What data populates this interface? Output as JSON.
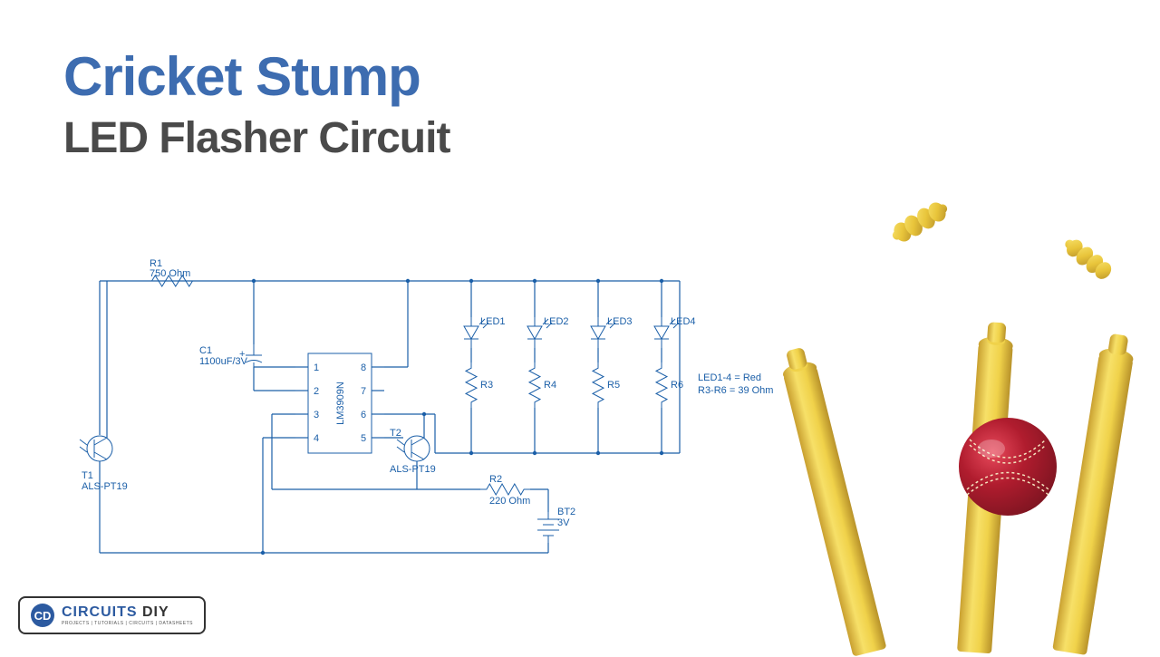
{
  "title": {
    "line1": "Cricket Stump",
    "line1_color": "#3d6cb0",
    "line2": "LED Flasher Circuit",
    "line2_color": "#4a4a4a"
  },
  "circuit": {
    "wire_color": "#1b5fa8",
    "label_color": "#1b5fa8",
    "label_fontsize": 11,
    "ic": {
      "name": "LM3909N",
      "pins": [
        1,
        2,
        3,
        4,
        5,
        6,
        7,
        8
      ]
    },
    "components": {
      "R1": {
        "label": "R1",
        "value": "750 Ohm"
      },
      "R2": {
        "label": "R2",
        "value": "220 Ohm"
      },
      "R3": {
        "label": "R3"
      },
      "R4": {
        "label": "R4"
      },
      "R5": {
        "label": "R5"
      },
      "R6": {
        "label": "R6"
      },
      "C1": {
        "label": "C1",
        "value": "1100uF/3V"
      },
      "T1": {
        "label": "T1",
        "value": "ALS-PT19"
      },
      "T2": {
        "label": "T2",
        "value": "ALS-PT19"
      },
      "BT2": {
        "label": "BT2",
        "value": "3V"
      },
      "LED1": {
        "label": "LED1"
      },
      "LED2": {
        "label": "LED2"
      },
      "LED3": {
        "label": "LED3"
      },
      "LED4": {
        "label": "LED4"
      }
    },
    "note": {
      "line1": "LED1-4 = Red",
      "line2": "R3-R6 = 39 Ohm"
    }
  },
  "illustration": {
    "stump_color_light": "#f5d84a",
    "stump_color_dark": "#d4a935",
    "bail_color": "#e8c43a",
    "ball_color": "#b01c2e",
    "ball_highlight": "#e84a5c",
    "ball_stitch": "#f5e6c0"
  },
  "logo": {
    "icon": "CD",
    "main": "CIRCUITS DIY",
    "main_color_1": "#2c5aa0",
    "main_color_2": "#333333",
    "sub": "PROJECTS | TUTORIALS | CIRCUITS | DATASHEETS"
  }
}
